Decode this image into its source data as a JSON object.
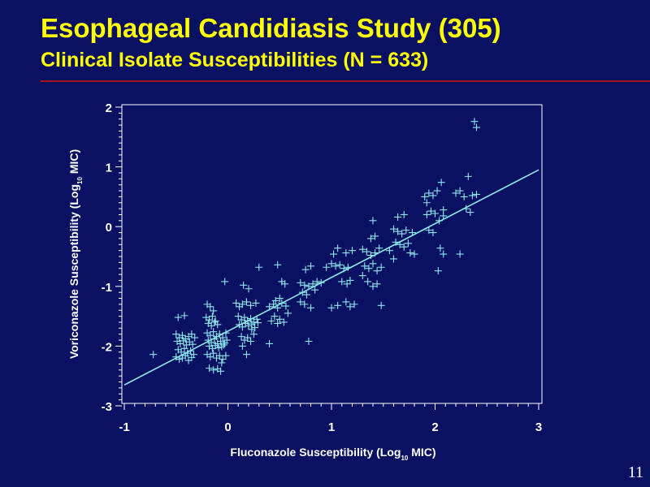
{
  "slide": {
    "title": "Esophageal Candidiasis Study (305)",
    "subtitle": "Clinical Isolate Susceptibilities (N = 633)",
    "page_number": "11"
  },
  "colors": {
    "background": "#0a1162",
    "title": "#ffff00",
    "rule": "#a01818",
    "axes": "#ffffff",
    "markers": "#8de8ee",
    "fit_line": "#8de8ee"
  },
  "chart_data": {
    "type": "scatter",
    "xlabel_main": "Fluconazole Susceptibility (Log",
    "xlabel_sub": "10",
    "xlabel_end": " MIC)",
    "ylabel_main": "Voriconazole Susceptibility (Log",
    "ylabel_sub": "10",
    "ylabel_end": " MIC)",
    "xlim": [
      -1,
      3
    ],
    "ylim": [
      -3,
      2
    ],
    "xticks": [
      -1,
      0,
      1,
      2,
      3
    ],
    "yticks": [
      -3,
      -2,
      -1,
      0,
      1,
      2
    ],
    "grid": false,
    "legend": false,
    "marker": "plus",
    "regression_line": {
      "x": [
        -1,
        3
      ],
      "y": [
        -2.65,
        0.95
      ]
    },
    "points": [
      {
        "x": -0.72,
        "y": -2.14
      },
      {
        "x": -0.48,
        "y": -1.52
      },
      {
        "x": -0.42,
        "y": -1.49
      },
      {
        "x": -0.5,
        "y": -1.8
      },
      {
        "x": -0.47,
        "y": -1.86
      },
      {
        "x": -0.44,
        "y": -1.82
      },
      {
        "x": -0.41,
        "y": -1.88
      },
      {
        "x": -0.38,
        "y": -1.84
      },
      {
        "x": -0.35,
        "y": -1.8
      },
      {
        "x": -0.32,
        "y": -1.86
      },
      {
        "x": -0.49,
        "y": -1.92
      },
      {
        "x": -0.46,
        "y": -1.96
      },
      {
        "x": -0.43,
        "y": -1.91
      },
      {
        "x": -0.4,
        "y": -1.98
      },
      {
        "x": -0.37,
        "y": -1.93
      },
      {
        "x": -0.34,
        "y": -1.97
      },
      {
        "x": -0.48,
        "y": -2.06
      },
      {
        "x": -0.45,
        "y": -2.1
      },
      {
        "x": -0.42,
        "y": -2.04
      },
      {
        "x": -0.39,
        "y": -2.12
      },
      {
        "x": -0.36,
        "y": -2.08
      },
      {
        "x": -0.33,
        "y": -2.14
      },
      {
        "x": -0.5,
        "y": -2.18
      },
      {
        "x": -0.47,
        "y": -2.22
      },
      {
        "x": -0.44,
        "y": -2.2
      },
      {
        "x": -0.41,
        "y": -2.16
      },
      {
        "x": -0.38,
        "y": -2.24
      },
      {
        "x": -0.35,
        "y": -2.19
      },
      {
        "x": -0.2,
        "y": -1.3
      },
      {
        "x": -0.17,
        "y": -1.34
      },
      {
        "x": -0.14,
        "y": -1.41
      },
      {
        "x": -0.21,
        "y": -1.52
      },
      {
        "x": -0.18,
        "y": -1.56
      },
      {
        "x": -0.15,
        "y": -1.5
      },
      {
        "x": -0.12,
        "y": -1.58
      },
      {
        "x": -0.19,
        "y": -1.62
      },
      {
        "x": -0.16,
        "y": -1.66
      },
      {
        "x": -0.13,
        "y": -1.6
      },
      {
        "x": -0.1,
        "y": -1.64
      },
      {
        "x": -0.2,
        "y": -1.78
      },
      {
        "x": -0.17,
        "y": -1.82
      },
      {
        "x": -0.14,
        "y": -1.76
      },
      {
        "x": -0.11,
        "y": -1.84
      },
      {
        "x": -0.08,
        "y": -1.8
      },
      {
        "x": -0.05,
        "y": -1.86
      },
      {
        "x": -0.02,
        "y": -1.78
      },
      {
        "x": -0.19,
        "y": -1.9
      },
      {
        "x": -0.16,
        "y": -1.94
      },
      {
        "x": -0.13,
        "y": -1.88
      },
      {
        "x": -0.1,
        "y": -1.96
      },
      {
        "x": -0.07,
        "y": -1.92
      },
      {
        "x": -0.04,
        "y": -1.98
      },
      {
        "x": -0.01,
        "y": -1.9
      },
      {
        "x": -0.18,
        "y": -2.0
      },
      {
        "x": -0.15,
        "y": -2.04
      },
      {
        "x": -0.12,
        "y": -1.99
      },
      {
        "x": -0.09,
        "y": -2.03
      },
      {
        "x": -0.06,
        "y": -2.01
      },
      {
        "x": -0.03,
        "y": -1.95
      },
      {
        "x": -0.2,
        "y": -2.14
      },
      {
        "x": -0.17,
        "y": -2.18
      },
      {
        "x": -0.14,
        "y": -2.12
      },
      {
        "x": -0.11,
        "y": -2.2
      },
      {
        "x": -0.08,
        "y": -2.16
      },
      {
        "x": -0.05,
        "y": -2.22
      },
      {
        "x": -0.02,
        "y": -2.16
      },
      {
        "x": -0.06,
        "y": -2.28
      },
      {
        "x": -0.18,
        "y": -2.37
      },
      {
        "x": -0.14,
        "y": -2.4
      },
      {
        "x": -0.1,
        "y": -2.38
      },
      {
        "x": -0.07,
        "y": -2.42
      },
      {
        "x": -0.03,
        "y": -0.92
      },
      {
        "x": 0.08,
        "y": -1.28
      },
      {
        "x": 0.11,
        "y": -1.34
      },
      {
        "x": 0.14,
        "y": -1.3
      },
      {
        "x": 0.18,
        "y": -1.26
      },
      {
        "x": 0.22,
        "y": -1.32
      },
      {
        "x": 0.27,
        "y": -1.28
      },
      {
        "x": 0.15,
        "y": -0.98
      },
      {
        "x": 0.2,
        "y": -1.04
      },
      {
        "x": 0.1,
        "y": -1.5
      },
      {
        "x": 0.13,
        "y": -1.56
      },
      {
        "x": 0.16,
        "y": -1.52
      },
      {
        "x": 0.19,
        "y": -1.58
      },
      {
        "x": 0.22,
        "y": -1.54
      },
      {
        "x": 0.25,
        "y": -1.6
      },
      {
        "x": 0.28,
        "y": -1.55
      },
      {
        "x": 0.11,
        "y": -1.64
      },
      {
        "x": 0.14,
        "y": -1.68
      },
      {
        "x": 0.17,
        "y": -1.62
      },
      {
        "x": 0.2,
        "y": -1.66
      },
      {
        "x": 0.23,
        "y": -1.63
      },
      {
        "x": 0.26,
        "y": -1.69
      },
      {
        "x": 0.29,
        "y": -1.61
      },
      {
        "x": 0.13,
        "y": -1.84
      },
      {
        "x": 0.16,
        "y": -1.9
      },
      {
        "x": 0.19,
        "y": -1.86
      },
      {
        "x": 0.22,
        "y": -1.92
      },
      {
        "x": 0.25,
        "y": -1.8
      },
      {
        "x": 0.14,
        "y": -2.0
      },
      {
        "x": 0.18,
        "y": -2.14
      },
      {
        "x": 0.23,
        "y": -1.72
      },
      {
        "x": 0.3,
        "y": -0.68
      },
      {
        "x": 0.4,
        "y": -1.34
      },
      {
        "x": 0.44,
        "y": -1.3
      },
      {
        "x": 0.48,
        "y": -1.36
      },
      {
        "x": 0.52,
        "y": -1.28
      },
      {
        "x": 0.56,
        "y": -1.33
      },
      {
        "x": 0.46,
        "y": -1.24
      },
      {
        "x": 0.5,
        "y": -1.2
      },
      {
        "x": 0.45,
        "y": -1.5
      },
      {
        "x": 0.5,
        "y": -1.55
      },
      {
        "x": 0.54,
        "y": -1.6
      },
      {
        "x": 0.48,
        "y": -1.62
      },
      {
        "x": 0.42,
        "y": -1.58
      },
      {
        "x": 0.52,
        "y": -0.92
      },
      {
        "x": 0.55,
        "y": -0.96
      },
      {
        "x": 0.48,
        "y": -0.64
      },
      {
        "x": 0.4,
        "y": -1.96
      },
      {
        "x": 0.58,
        "y": -1.45
      },
      {
        "x": 0.7,
        "y": -0.94
      },
      {
        "x": 0.74,
        "y": -0.98
      },
      {
        "x": 0.78,
        "y": -1.0
      },
      {
        "x": 0.82,
        "y": -0.96
      },
      {
        "x": 0.86,
        "y": -0.92
      },
      {
        "x": 0.72,
        "y": -1.1
      },
      {
        "x": 0.76,
        "y": -1.14
      },
      {
        "x": 0.7,
        "y": -1.26
      },
      {
        "x": 0.74,
        "y": -1.3
      },
      {
        "x": 0.8,
        "y": -1.36
      },
      {
        "x": 0.75,
        "y": -0.72
      },
      {
        "x": 0.8,
        "y": -0.66
      },
      {
        "x": 0.78,
        "y": -1.92
      },
      {
        "x": 0.9,
        "y": -0.94
      },
      {
        "x": 0.84,
        "y": -1.06
      },
      {
        "x": 0.95,
        "y": -0.68
      },
      {
        "x": 1.0,
        "y": -0.62
      },
      {
        "x": 1.04,
        "y": -0.66
      },
      {
        "x": 1.08,
        "y": -0.64
      },
      {
        "x": 1.12,
        "y": -0.7
      },
      {
        "x": 1.16,
        "y": -0.68
      },
      {
        "x": 1.02,
        "y": -0.46
      },
      {
        "x": 1.06,
        "y": -0.36
      },
      {
        "x": 1.14,
        "y": -0.44
      },
      {
        "x": 1.2,
        "y": -0.4
      },
      {
        "x": 1.1,
        "y": -0.92
      },
      {
        "x": 1.15,
        "y": -0.96
      },
      {
        "x": 1.18,
        "y": -0.9
      },
      {
        "x": 1.0,
        "y": -1.36
      },
      {
        "x": 1.06,
        "y": -1.32
      },
      {
        "x": 1.14,
        "y": -1.26
      },
      {
        "x": 1.18,
        "y": -1.34
      },
      {
        "x": 1.22,
        "y": -1.3
      },
      {
        "x": 1.3,
        "y": -0.38
      },
      {
        "x": 1.34,
        "y": -0.42
      },
      {
        "x": 1.38,
        "y": -0.48
      },
      {
        "x": 1.42,
        "y": -0.44
      },
      {
        "x": 1.46,
        "y": -0.36
      },
      {
        "x": 1.32,
        "y": -0.66
      },
      {
        "x": 1.36,
        "y": -0.7
      },
      {
        "x": 1.4,
        "y": -0.62
      },
      {
        "x": 1.44,
        "y": -0.74
      },
      {
        "x": 1.48,
        "y": -0.68
      },
      {
        "x": 1.35,
        "y": -0.92
      },
      {
        "x": 1.4,
        "y": -1.0
      },
      {
        "x": 1.44,
        "y": -0.96
      },
      {
        "x": 1.38,
        "y": -0.2
      },
      {
        "x": 1.42,
        "y": -0.16
      },
      {
        "x": 1.4,
        "y": 0.1
      },
      {
        "x": 1.48,
        "y": -1.32
      },
      {
        "x": 1.3,
        "y": -0.82
      },
      {
        "x": 1.6,
        "y": -0.04
      },
      {
        "x": 1.64,
        "y": -0.08
      },
      {
        "x": 1.68,
        "y": -0.12
      },
      {
        "x": 1.72,
        "y": -0.06
      },
      {
        "x": 1.62,
        "y": -0.26
      },
      {
        "x": 1.66,
        "y": -0.3
      },
      {
        "x": 1.7,
        "y": -0.34
      },
      {
        "x": 1.74,
        "y": -0.28
      },
      {
        "x": 1.64,
        "y": 0.16
      },
      {
        "x": 1.7,
        "y": 0.2
      },
      {
        "x": 1.76,
        "y": -0.44
      },
      {
        "x": 1.6,
        "y": -0.54
      },
      {
        "x": 1.56,
        "y": -0.4
      },
      {
        "x": 1.78,
        "y": -0.1
      },
      {
        "x": 1.8,
        "y": -0.46
      },
      {
        "x": 1.9,
        "y": 0.5
      },
      {
        "x": 1.94,
        "y": 0.56
      },
      {
        "x": 1.98,
        "y": 0.52
      },
      {
        "x": 2.02,
        "y": 0.6
      },
      {
        "x": 1.92,
        "y": 0.2
      },
      {
        "x": 1.96,
        "y": 0.26
      },
      {
        "x": 2.0,
        "y": 0.22
      },
      {
        "x": 2.04,
        "y": 0.1
      },
      {
        "x": 2.08,
        "y": 0.28
      },
      {
        "x": 2.08,
        "y": 0.18
      },
      {
        "x": 2.06,
        "y": 0.74
      },
      {
        "x": 1.94,
        "y": -0.06
      },
      {
        "x": 1.98,
        "y": -0.1
      },
      {
        "x": 2.05,
        "y": -0.36
      },
      {
        "x": 2.08,
        "y": -0.46
      },
      {
        "x": 2.03,
        "y": -0.74
      },
      {
        "x": 1.92,
        "y": 0.4
      },
      {
        "x": 2.2,
        "y": 0.56
      },
      {
        "x": 2.24,
        "y": 0.6
      },
      {
        "x": 2.28,
        "y": 0.5
      },
      {
        "x": 2.32,
        "y": 0.84
      },
      {
        "x": 2.36,
        "y": 0.52
      },
      {
        "x": 2.4,
        "y": 0.54
      },
      {
        "x": 2.34,
        "y": 0.24
      },
      {
        "x": 2.38,
        "y": 1.76
      },
      {
        "x": 2.4,
        "y": 1.66
      },
      {
        "x": 2.24,
        "y": -0.46
      },
      {
        "x": 2.3,
        "y": 0.3
      }
    ]
  }
}
